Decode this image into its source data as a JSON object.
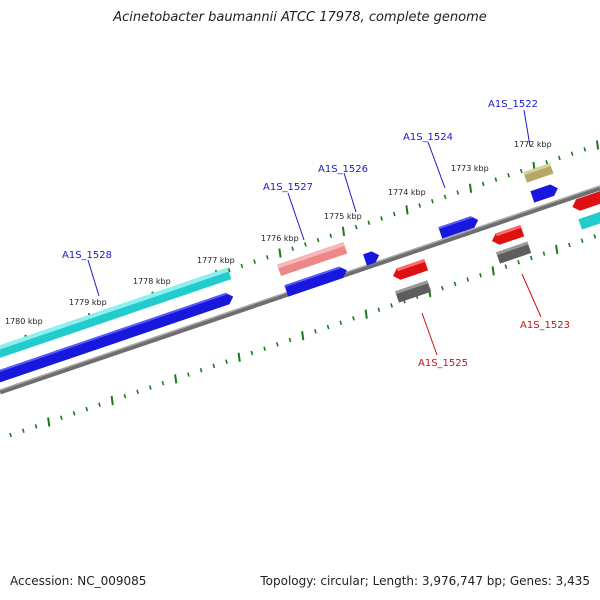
{
  "title": "Acinetobacter baumannii ATCC 17978, complete genome",
  "footer": {
    "accession": "Accession: NC_009085",
    "summary": "Topology: circular; Length: 3,976,747 bp; Genes: 3,435"
  },
  "colors": {
    "backbone": "#7a7a7a",
    "tick": "#1a7a1a",
    "forward_label": "#1a1acc",
    "reverse_label": "#cc1111"
  },
  "tick_labels": [
    "1772 kbp",
    "1773 kbp",
    "1774 kbp",
    "1775 kbp",
    "1776 kbp",
    "1777 kbp",
    "1778 kbp",
    "1779 kbp",
    "1780 kbp"
  ],
  "gene_labels": [
    "A1S_1522",
    "A1S_1523",
    "A1S_1524",
    "A1S_1525",
    "A1S_1526",
    "A1S_1527",
    "A1S_1528"
  ]
}
